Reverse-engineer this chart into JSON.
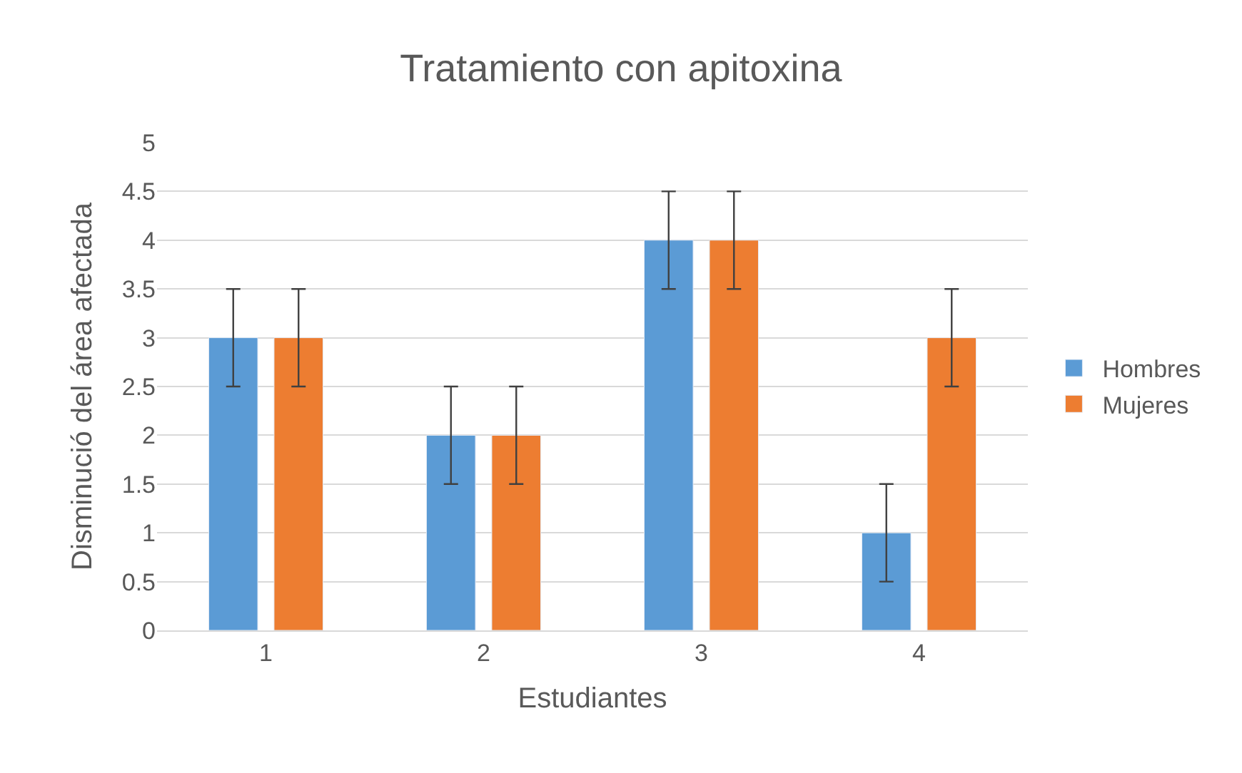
{
  "chart_data": {
    "type": "bar",
    "title": "Tratamiento con apitoxina",
    "xlabel": "Estudiantes",
    "ylabel": "Disminució del área afectada",
    "categories": [
      "1",
      "2",
      "3",
      "4"
    ],
    "series": [
      {
        "name": "Hombres",
        "color": "#5b9bd5",
        "values": [
          3,
          2,
          4,
          1
        ],
        "errors": [
          0.5,
          0.5,
          0.5,
          0.5
        ]
      },
      {
        "name": "Mujeres",
        "color": "#ed7d31",
        "values": [
          3,
          2,
          4,
          3
        ],
        "errors": [
          0.5,
          0.5,
          0.5,
          0.5
        ]
      }
    ],
    "ylim": [
      0,
      5
    ],
    "yticks": [
      0,
      0.5,
      1,
      1.5,
      2,
      2.5,
      3,
      3.5,
      4,
      4.5,
      5
    ],
    "grid": "y",
    "legend": "right"
  }
}
